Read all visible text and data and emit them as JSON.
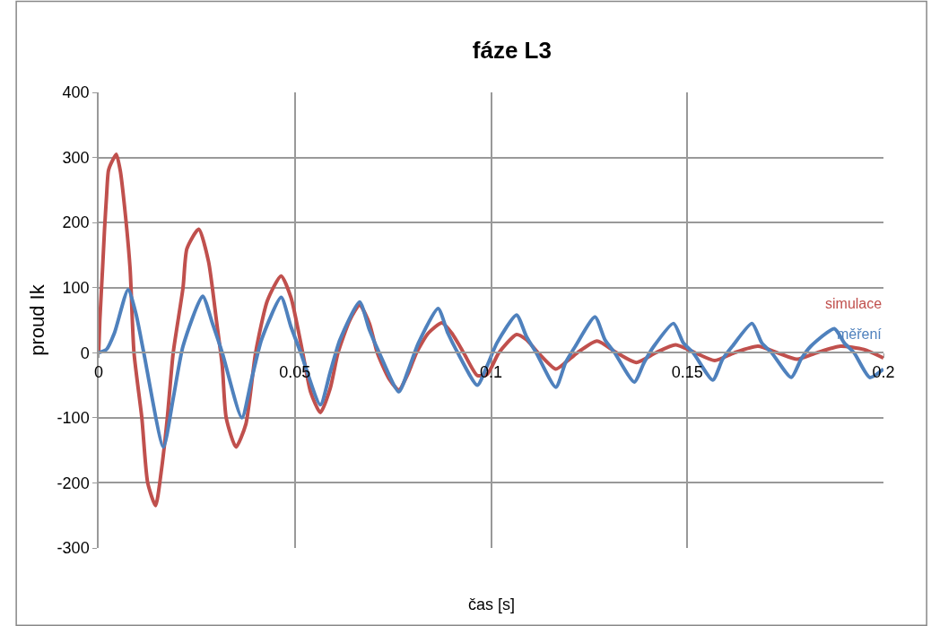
{
  "chart_data": {
    "type": "line",
    "title": "fáze L3",
    "xlabel": "čas [s]",
    "ylabel": "proud Ik",
    "xlim": [
      0,
      0.2
    ],
    "xticks": [
      0,
      0.05,
      0.1,
      0.15,
      0.2
    ],
    "ylim": [
      -300,
      400
    ],
    "yticks": [
      -300,
      -200,
      -100,
      0,
      100,
      200,
      300,
      400
    ],
    "grid": true,
    "legend": false,
    "marker": "none",
    "line_style": "solid",
    "series": [
      {
        "name": "simulace",
        "color": "#c0504d",
        "x": [
          0,
          0.0003,
          0.001,
          0.0015,
          0.002,
          0.0025,
          0.0035,
          0.0045,
          0.0055,
          0.0065,
          0.008,
          0.009,
          0.011,
          0.0125,
          0.0145,
          0.016,
          0.0175,
          0.019,
          0.0215,
          0.0225,
          0.0255,
          0.028,
          0.03,
          0.0315,
          0.0325,
          0.035,
          0.0375,
          0.04,
          0.043,
          0.0465,
          0.049,
          0.052,
          0.054,
          0.0565,
          0.059,
          0.061,
          0.064,
          0.0665,
          0.069,
          0.071,
          0.074,
          0.0765,
          0.079,
          0.081,
          0.084,
          0.0875,
          0.09,
          0.093,
          0.0965,
          0.099,
          0.102,
          0.1065,
          0.109,
          0.112,
          0.1165,
          0.119,
          0.122,
          0.127,
          0.132,
          0.137,
          0.142,
          0.147,
          0.152,
          0.157,
          0.162,
          0.168,
          0.173,
          0.178,
          0.183,
          0.189,
          0.195,
          0.2
        ],
        "values": [
          0,
          50,
          130,
          190,
          240,
          280,
          295,
          305,
          280,
          230,
          130,
          0,
          -100,
          -200,
          -235,
          -180,
          -100,
          0,
          100,
          160,
          190,
          140,
          50,
          -20,
          -100,
          -145,
          -110,
          0,
          80,
          118,
          85,
          0,
          -60,
          -92,
          -55,
          0,
          50,
          73,
          45,
          0,
          -40,
          -57,
          -30,
          0,
          30,
          46,
          30,
          0,
          -35,
          -33,
          0,
          28,
          20,
          0,
          -25,
          -15,
          0,
          18,
          0,
          -15,
          0,
          12,
          0,
          -12,
          0,
          10,
          0,
          -10,
          0,
          10,
          5,
          -8
        ]
      },
      {
        "name": "měření",
        "color": "#4f81bd",
        "x": [
          0,
          0.002,
          0.004,
          0.0075,
          0.0095,
          0.0115,
          0.0165,
          0.019,
          0.0215,
          0.0265,
          0.029,
          0.0315,
          0.0365,
          0.039,
          0.0415,
          0.0465,
          0.049,
          0.0515,
          0.0565,
          0.059,
          0.0615,
          0.0665,
          0.069,
          0.0715,
          0.0765,
          0.079,
          0.0815,
          0.0865,
          0.089,
          0.0915,
          0.0965,
          0.099,
          0.1015,
          0.1065,
          0.109,
          0.1115,
          0.1165,
          0.119,
          0.1215,
          0.1265,
          0.129,
          0.1315,
          0.1365,
          0.139,
          0.1415,
          0.1465,
          0.149,
          0.1515,
          0.1565,
          0.159,
          0.1615,
          0.1665,
          0.169,
          0.1715,
          0.1765,
          0.179,
          0.1815,
          0.1875,
          0.19,
          0.1925,
          0.1965,
          0.2
        ],
        "values": [
          0,
          5,
          30,
          97,
          60,
          0,
          -145,
          -70,
          10,
          87,
          45,
          0,
          -100,
          -40,
          20,
          85,
          40,
          0,
          -80,
          -30,
          20,
          78,
          35,
          0,
          -60,
          -25,
          15,
          68,
          30,
          0,
          -50,
          -20,
          15,
          58,
          25,
          0,
          -53,
          -15,
          10,
          55,
          20,
          0,
          -45,
          -15,
          10,
          45,
          15,
          0,
          -42,
          -10,
          10,
          45,
          15,
          0,
          -38,
          -10,
          10,
          37,
          15,
          0,
          -38,
          -25
        ]
      }
    ]
  }
}
